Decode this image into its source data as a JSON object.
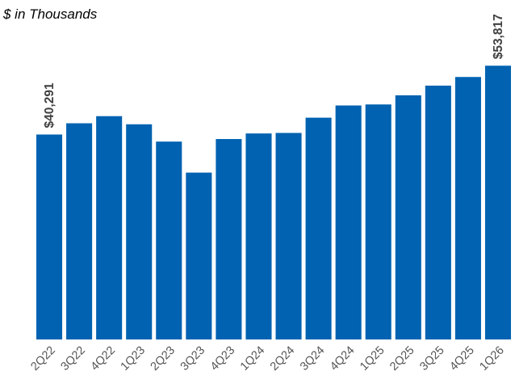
{
  "chart_data": {
    "type": "bar",
    "subtitle": "$ in Thousands",
    "categories": [
      "2Q22",
      "3Q22",
      "4Q22",
      "1Q23",
      "2Q23",
      "3Q23",
      "4Q23",
      "1Q24",
      "2Q24",
      "3Q24",
      "4Q24",
      "1Q25",
      "2Q25",
      "3Q25",
      "4Q25",
      "1Q26"
    ],
    "values": [
      40291,
      42500,
      43900,
      42300,
      38900,
      32800,
      39400,
      40500,
      40600,
      43600,
      46000,
      46200,
      48000,
      49900,
      51600,
      53817
    ],
    "data_labels": [
      {
        "index": 0,
        "text": "$40,291"
      },
      {
        "index": 15,
        "text": "$53,817"
      }
    ],
    "ylim": [
      0,
      54500
    ],
    "grid": false,
    "bar_color": "#0062b1"
  }
}
